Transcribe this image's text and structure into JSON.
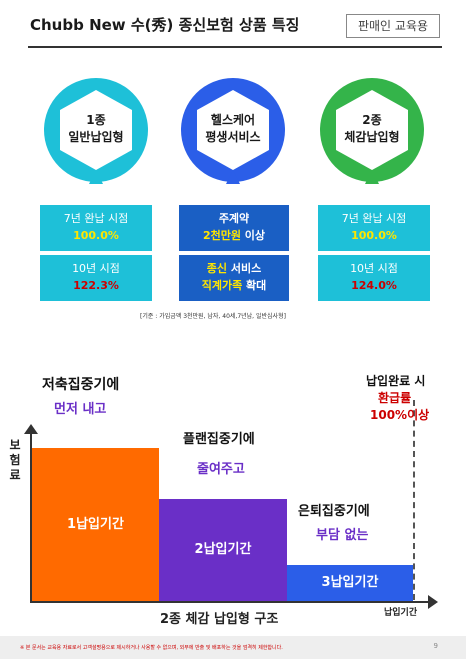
{
  "header": {
    "title": "Chubb New 수(秀) 종신보험 상품 특징",
    "badge": "판매인 교육용"
  },
  "features": [
    {
      "hex_line1": "1종",
      "hex_line2": "일반납입형",
      "box1_label": "7년 완납 시점",
      "box1_value": "100.0%",
      "box2_label": "10년 시점",
      "box2_value": "122.3%"
    },
    {
      "hex_line1": "헬스케어",
      "hex_line2": "평생서비스",
      "box1_line1": "주계약",
      "box1_line2_highlight": "2천만원",
      "box1_line2_rest": " 이상",
      "box2_line1_highlight": "종신",
      "box2_line1_rest": " 서비스",
      "box2_line2_highlight": "직계가족",
      "box2_line2_rest": " 확대"
    },
    {
      "hex_line1": "2종",
      "hex_line2": "체감납입형",
      "box1_label": "7년 완납 시점",
      "box1_value": "100.0%",
      "box2_label": "10년 시점",
      "box2_value": "124.0%"
    }
  ],
  "note": "[기준 : 가입금액 3천만원, 남자, 40세,7년납, 일반심사형]",
  "chart": {
    "title": "2종 체감 납입형 구조",
    "ylabel": "보험료",
    "xlabel": "납입기간",
    "top_right_line1": "납입완료 시",
    "top_right_line2": "환급률",
    "top_right_line3": "100%이상",
    "phase1_title": "저축집중기에",
    "phase1_sub": "먼저 내고",
    "phase2_title": "플랜집중기에",
    "phase2_sub": "줄여주고",
    "phase3_title": "은퇴집중기에",
    "phase3_sub": "부담 없는",
    "bars": [
      "1납입기간",
      "2납입기간",
      "3납입기간"
    ]
  },
  "chart_data": {
    "type": "bar",
    "categories": [
      "1납입기간",
      "2납입기간",
      "3납입기간"
    ],
    "values": [
      3,
      2,
      0.7
    ],
    "xlabel": "납입기간",
    "ylabel": "보험료",
    "title": "2종 체감 납입형 구조"
  },
  "footer": {
    "disclaimer": "※ 본 문서는 교육용 자료로서 고객설명용으로 제시하거나 사용할 수 없으며, 외부에 반출 및 배포하는 것을 엄격히 제한합니다.",
    "page": "9"
  },
  "colors": {
    "teal": "#1ec0d8",
    "blue": "#1a5fc4",
    "green": "#34b44a",
    "orange": "#ff6a00",
    "purple": "#6a2fc7",
    "light_blue": "#2b5ee8"
  }
}
